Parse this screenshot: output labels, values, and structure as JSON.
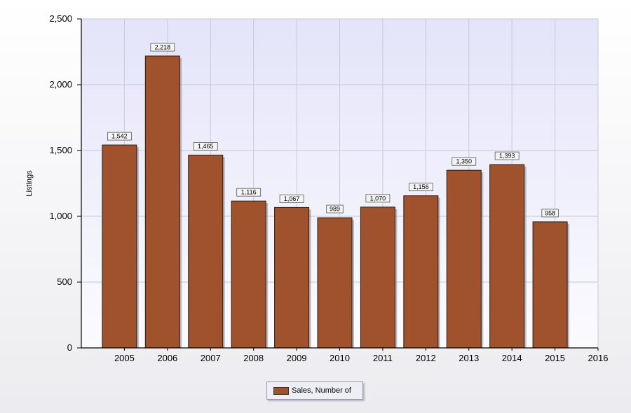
{
  "chart_data": {
    "type": "bar",
    "categories": [
      "2005",
      "2006",
      "2007",
      "2008",
      "2009",
      "2010",
      "2011",
      "2012",
      "2013",
      "2014",
      "2015"
    ],
    "x_ticks": [
      "2005",
      "2006",
      "2007",
      "2008",
      "2009",
      "2010",
      "2011",
      "2012",
      "2013",
      "2014",
      "2015",
      "2016"
    ],
    "series": [
      {
        "name": "Sales, Number of",
        "values": [
          1542,
          2218,
          1465,
          1116,
          1067,
          989,
          1070,
          1156,
          1350,
          1393,
          958
        ],
        "labels": [
          "1,542",
          "2,218",
          "1,465",
          "1,116",
          "1,067",
          "989",
          "1,070",
          "1,156",
          "1,350",
          "1,393",
          "958"
        ],
        "color": "#a0522d"
      }
    ],
    "ylabel": "Listings",
    "xlabel": "",
    "ylim": [
      0,
      2500
    ],
    "y_ticks": [
      0,
      500,
      1000,
      1500,
      2000,
      2500
    ],
    "y_tick_labels": [
      "0",
      "500",
      "1,000",
      "1,500",
      "2,000",
      "2,500"
    ],
    "grid": true,
    "legend_position": "bottom-center"
  },
  "legend": {
    "label": "Sales, Number of"
  },
  "colors": {
    "bar": "#a0522d",
    "plot_bg_top": "#e4e4fa",
    "plot_bg_bottom": "#fbfbfe",
    "grid": "#c8c8d8"
  }
}
